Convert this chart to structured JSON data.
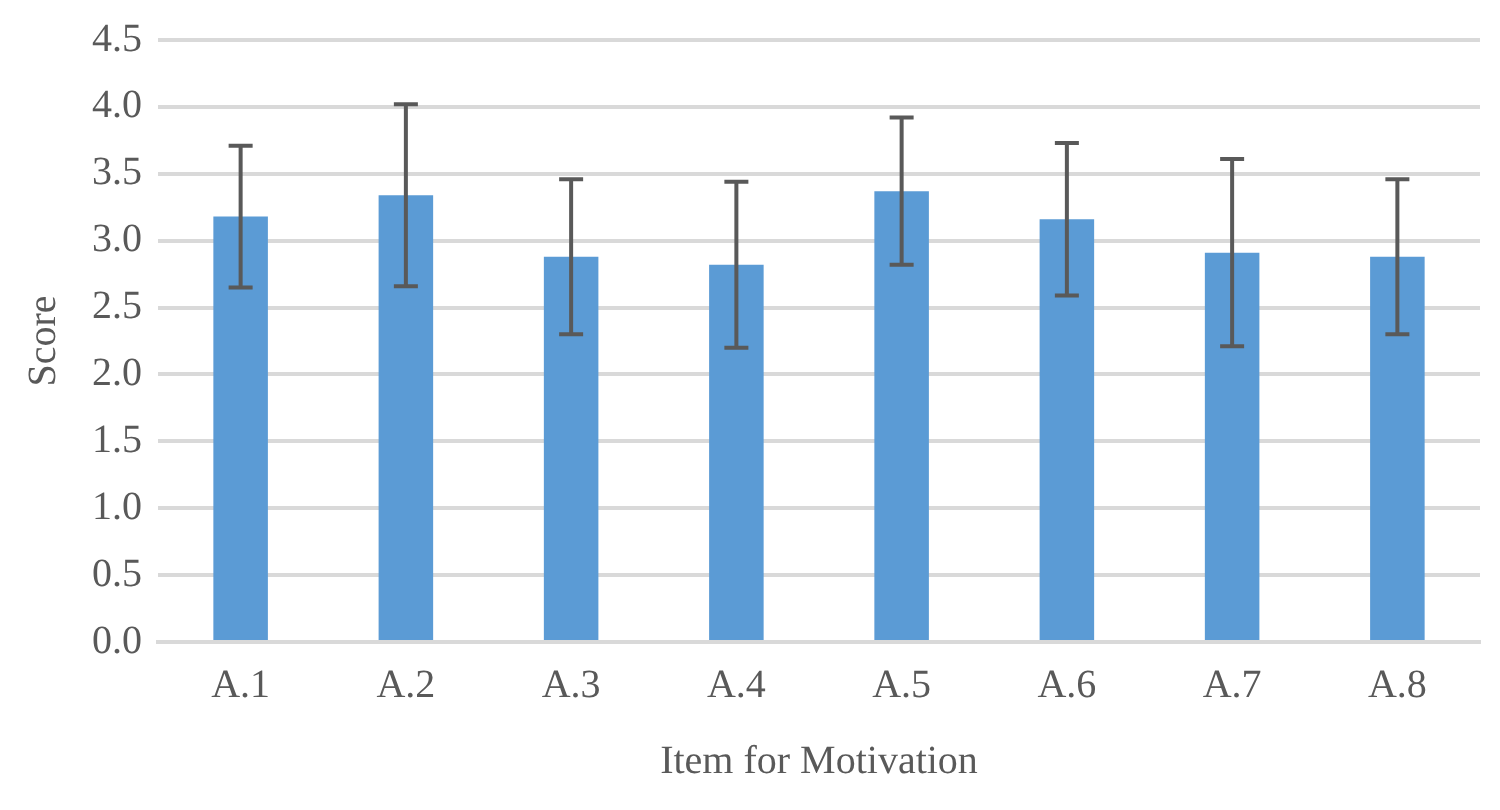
{
  "chart_data": {
    "type": "bar",
    "xlabel": "Item for Motivation",
    "ylabel": "Score",
    "categories": [
      "A.1",
      "A.2",
      "A.3",
      "A.4",
      "A.5",
      "A.6",
      "A.7",
      "A.8"
    ],
    "values": [
      3.18,
      3.34,
      2.88,
      2.82,
      3.37,
      3.16,
      2.91,
      2.88
    ],
    "errors": [
      0.53,
      0.68,
      0.58,
      0.62,
      0.55,
      0.57,
      0.7,
      0.58
    ],
    "color": "#5b9bd5",
    "ylim": [
      0,
      4.5
    ],
    "yticks": [
      {
        "value": 0,
        "label": "0.0"
      },
      {
        "value": 0.5,
        "label": "0.5"
      },
      {
        "value": 1,
        "label": "1.0"
      },
      {
        "value": 1.5,
        "label": "1.5"
      },
      {
        "value": 2,
        "label": "2.0"
      },
      {
        "value": 2.5,
        "label": "2.5"
      },
      {
        "value": 3,
        "label": "3.0"
      },
      {
        "value": 3.5,
        "label": "3.5"
      },
      {
        "value": 4,
        "label": "4.0"
      },
      {
        "value": 4.5,
        "label": "4.5"
      }
    ],
    "grid": "y",
    "legend": false
  }
}
